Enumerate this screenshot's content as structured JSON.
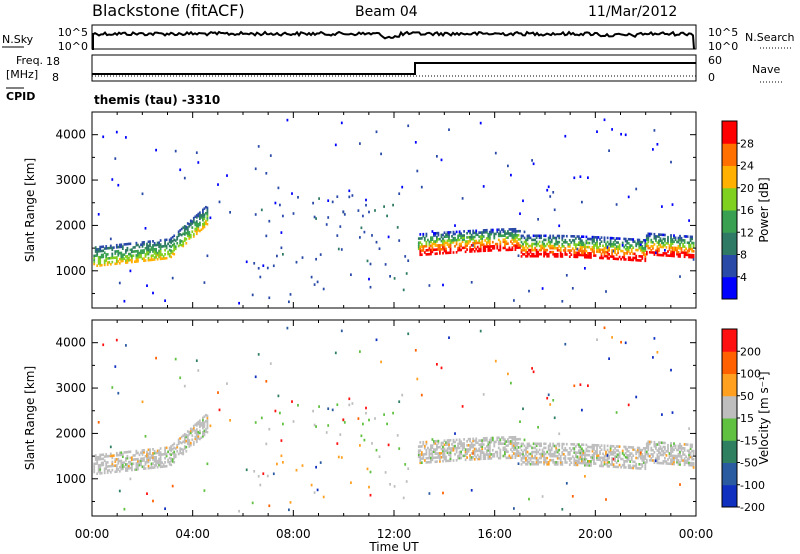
{
  "header": {
    "station": "Blackstone (fitACF)",
    "beam": "Beam 04",
    "date": "11/Mar/2012"
  },
  "noise_panel": {
    "left_label": "N.Sky",
    "left_ticks": [
      "10^5",
      "10^0"
    ],
    "right_ticks": [
      "10^5",
      "10^0"
    ],
    "right_label": "N.Search"
  },
  "freq_panel": {
    "left_label_line1": "Freq.",
    "left_label_line2": "[MHz]",
    "left_ticks": [
      "18",
      "8"
    ],
    "right_ticks": [
      "60",
      "0"
    ],
    "right_label": "Nave",
    "cpid_label": "CPID",
    "cpid_text": "themis (tau) -3310"
  },
  "chart_data": [
    {
      "type": "heatmap",
      "name": "power",
      "ylabel": "Slant Range [km]",
      "yticks": [
        "4000",
        "3000",
        "2000",
        "1000"
      ],
      "colorbar": {
        "label": "Power [dB]",
        "ticks": [
          "28",
          "24",
          "20",
          "16",
          "12",
          "8",
          "4"
        ],
        "colors": [
          "#0000ff",
          "#2a4aa8",
          "#2f7a64",
          "#38a050",
          "#80d020",
          "#ffb000",
          "#ff7000",
          "#ff0000"
        ]
      }
    },
    {
      "type": "heatmap",
      "name": "velocity",
      "ylabel": "Slant Range [km]",
      "yticks": [
        "4000",
        "3000",
        "2000",
        "1000"
      ],
      "colorbar": {
        "label": "Velocity [m s⁻¹]",
        "ticks": [
          "200",
          "100",
          "50",
          "15",
          "-15",
          "-50",
          "-100",
          "-200"
        ],
        "colors": [
          "#1030c0",
          "#2a5aa0",
          "#2f8060",
          "#60c040",
          "#bebebe",
          "#ffa020",
          "#ff6000",
          "#ff1010"
        ]
      }
    }
  ],
  "xaxis": {
    "ticks": [
      "00:00",
      "04:00",
      "08:00",
      "12:00",
      "16:00",
      "20:00",
      "00:00"
    ],
    "label": "Time UT"
  }
}
